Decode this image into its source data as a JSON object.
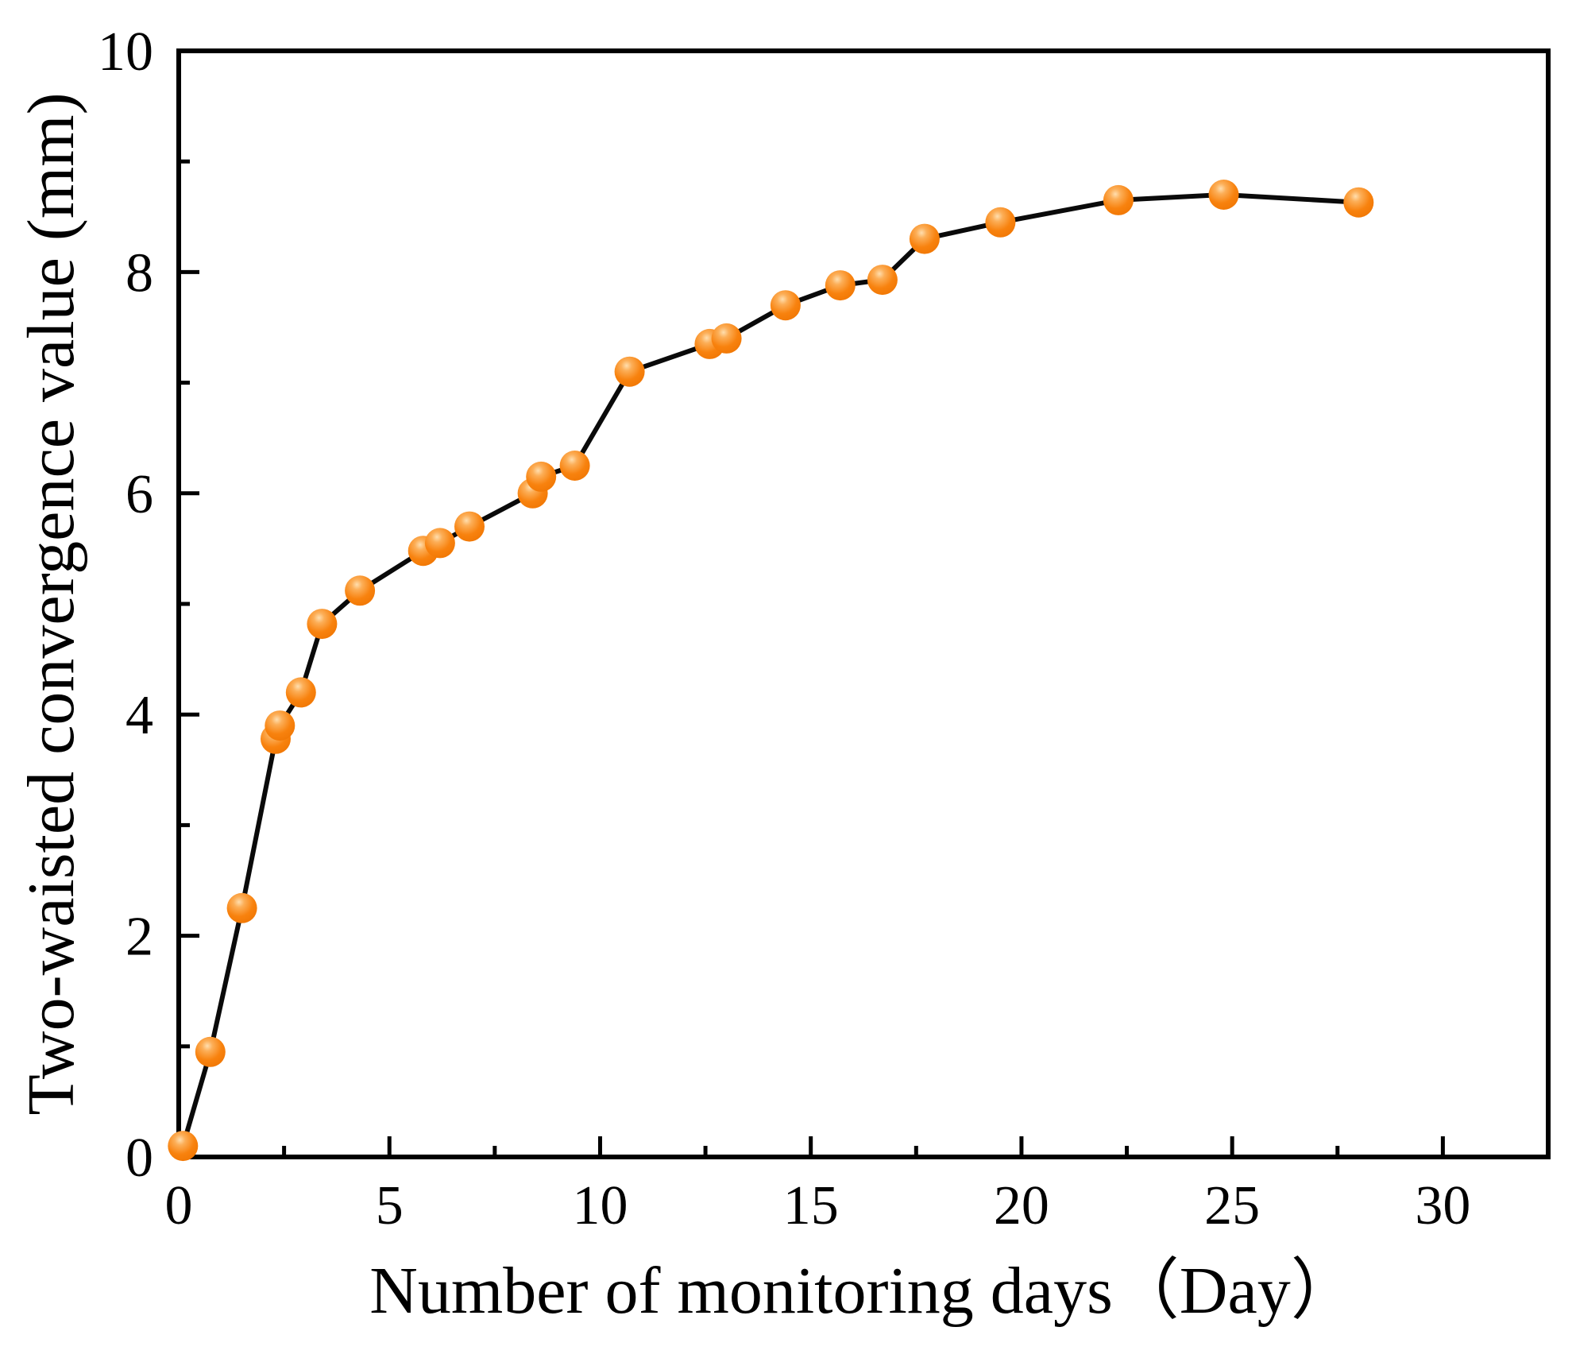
{
  "figure": {
    "background": "#ffffff",
    "frame_color": "#000000",
    "tick_color": "#000000",
    "text_color": "#000000"
  },
  "chart_data": {
    "type": "line",
    "title": "",
    "xlabel": "Number of monitoring days（Day）",
    "ylabel": "Two-waisted convergence value (mm)",
    "xlim": [
      0,
      32.5
    ],
    "ylim": [
      0,
      10
    ],
    "x_major_ticks": [
      0,
      5,
      10,
      15,
      20,
      25,
      30
    ],
    "x_minor_ticks": [
      2.5,
      7.5,
      12.5,
      17.5,
      22.5,
      27.5
    ],
    "y_major_ticks": [
      0,
      2,
      4,
      6,
      8,
      10
    ],
    "y_minor_ticks": [
      1,
      3,
      5,
      7,
      9
    ],
    "grid": false,
    "legend_position": "none",
    "series": [
      {
        "name": "Two-waisted convergence value",
        "line_color": "#0a0a0a",
        "line_width": 6,
        "marker": "sphere",
        "marker_radius": 19,
        "marker_color": "#f8820e",
        "marker_edge_color": "#ef7502",
        "marker_highlight": "#ffdeae",
        "points": [
          [
            0.1,
            0.1
          ],
          [
            0.75,
            0.95
          ],
          [
            1.5,
            2.25
          ],
          [
            2.3,
            3.78
          ],
          [
            2.4,
            3.9
          ],
          [
            2.9,
            4.2
          ],
          [
            3.4,
            4.82
          ],
          [
            4.3,
            5.12
          ],
          [
            5.8,
            5.48
          ],
          [
            6.2,
            5.55
          ],
          [
            6.9,
            5.7
          ],
          [
            8.4,
            6.0
          ],
          [
            8.6,
            6.15
          ],
          [
            9.4,
            6.25
          ],
          [
            10.7,
            7.1
          ],
          [
            12.6,
            7.35
          ],
          [
            13.0,
            7.4
          ],
          [
            14.4,
            7.7
          ],
          [
            15.7,
            7.88
          ],
          [
            16.7,
            7.93
          ],
          [
            17.7,
            8.3
          ],
          [
            19.5,
            8.45
          ],
          [
            22.3,
            8.65
          ],
          [
            24.8,
            8.7
          ],
          [
            28.0,
            8.63
          ]
        ]
      }
    ]
  },
  "layout_text": {
    "x_tick_labels": [
      "0",
      "5",
      "10",
      "15",
      "20",
      "25",
      "30"
    ],
    "y_tick_labels": [
      "0",
      "2",
      "4",
      "6",
      "8",
      "10"
    ]
  }
}
